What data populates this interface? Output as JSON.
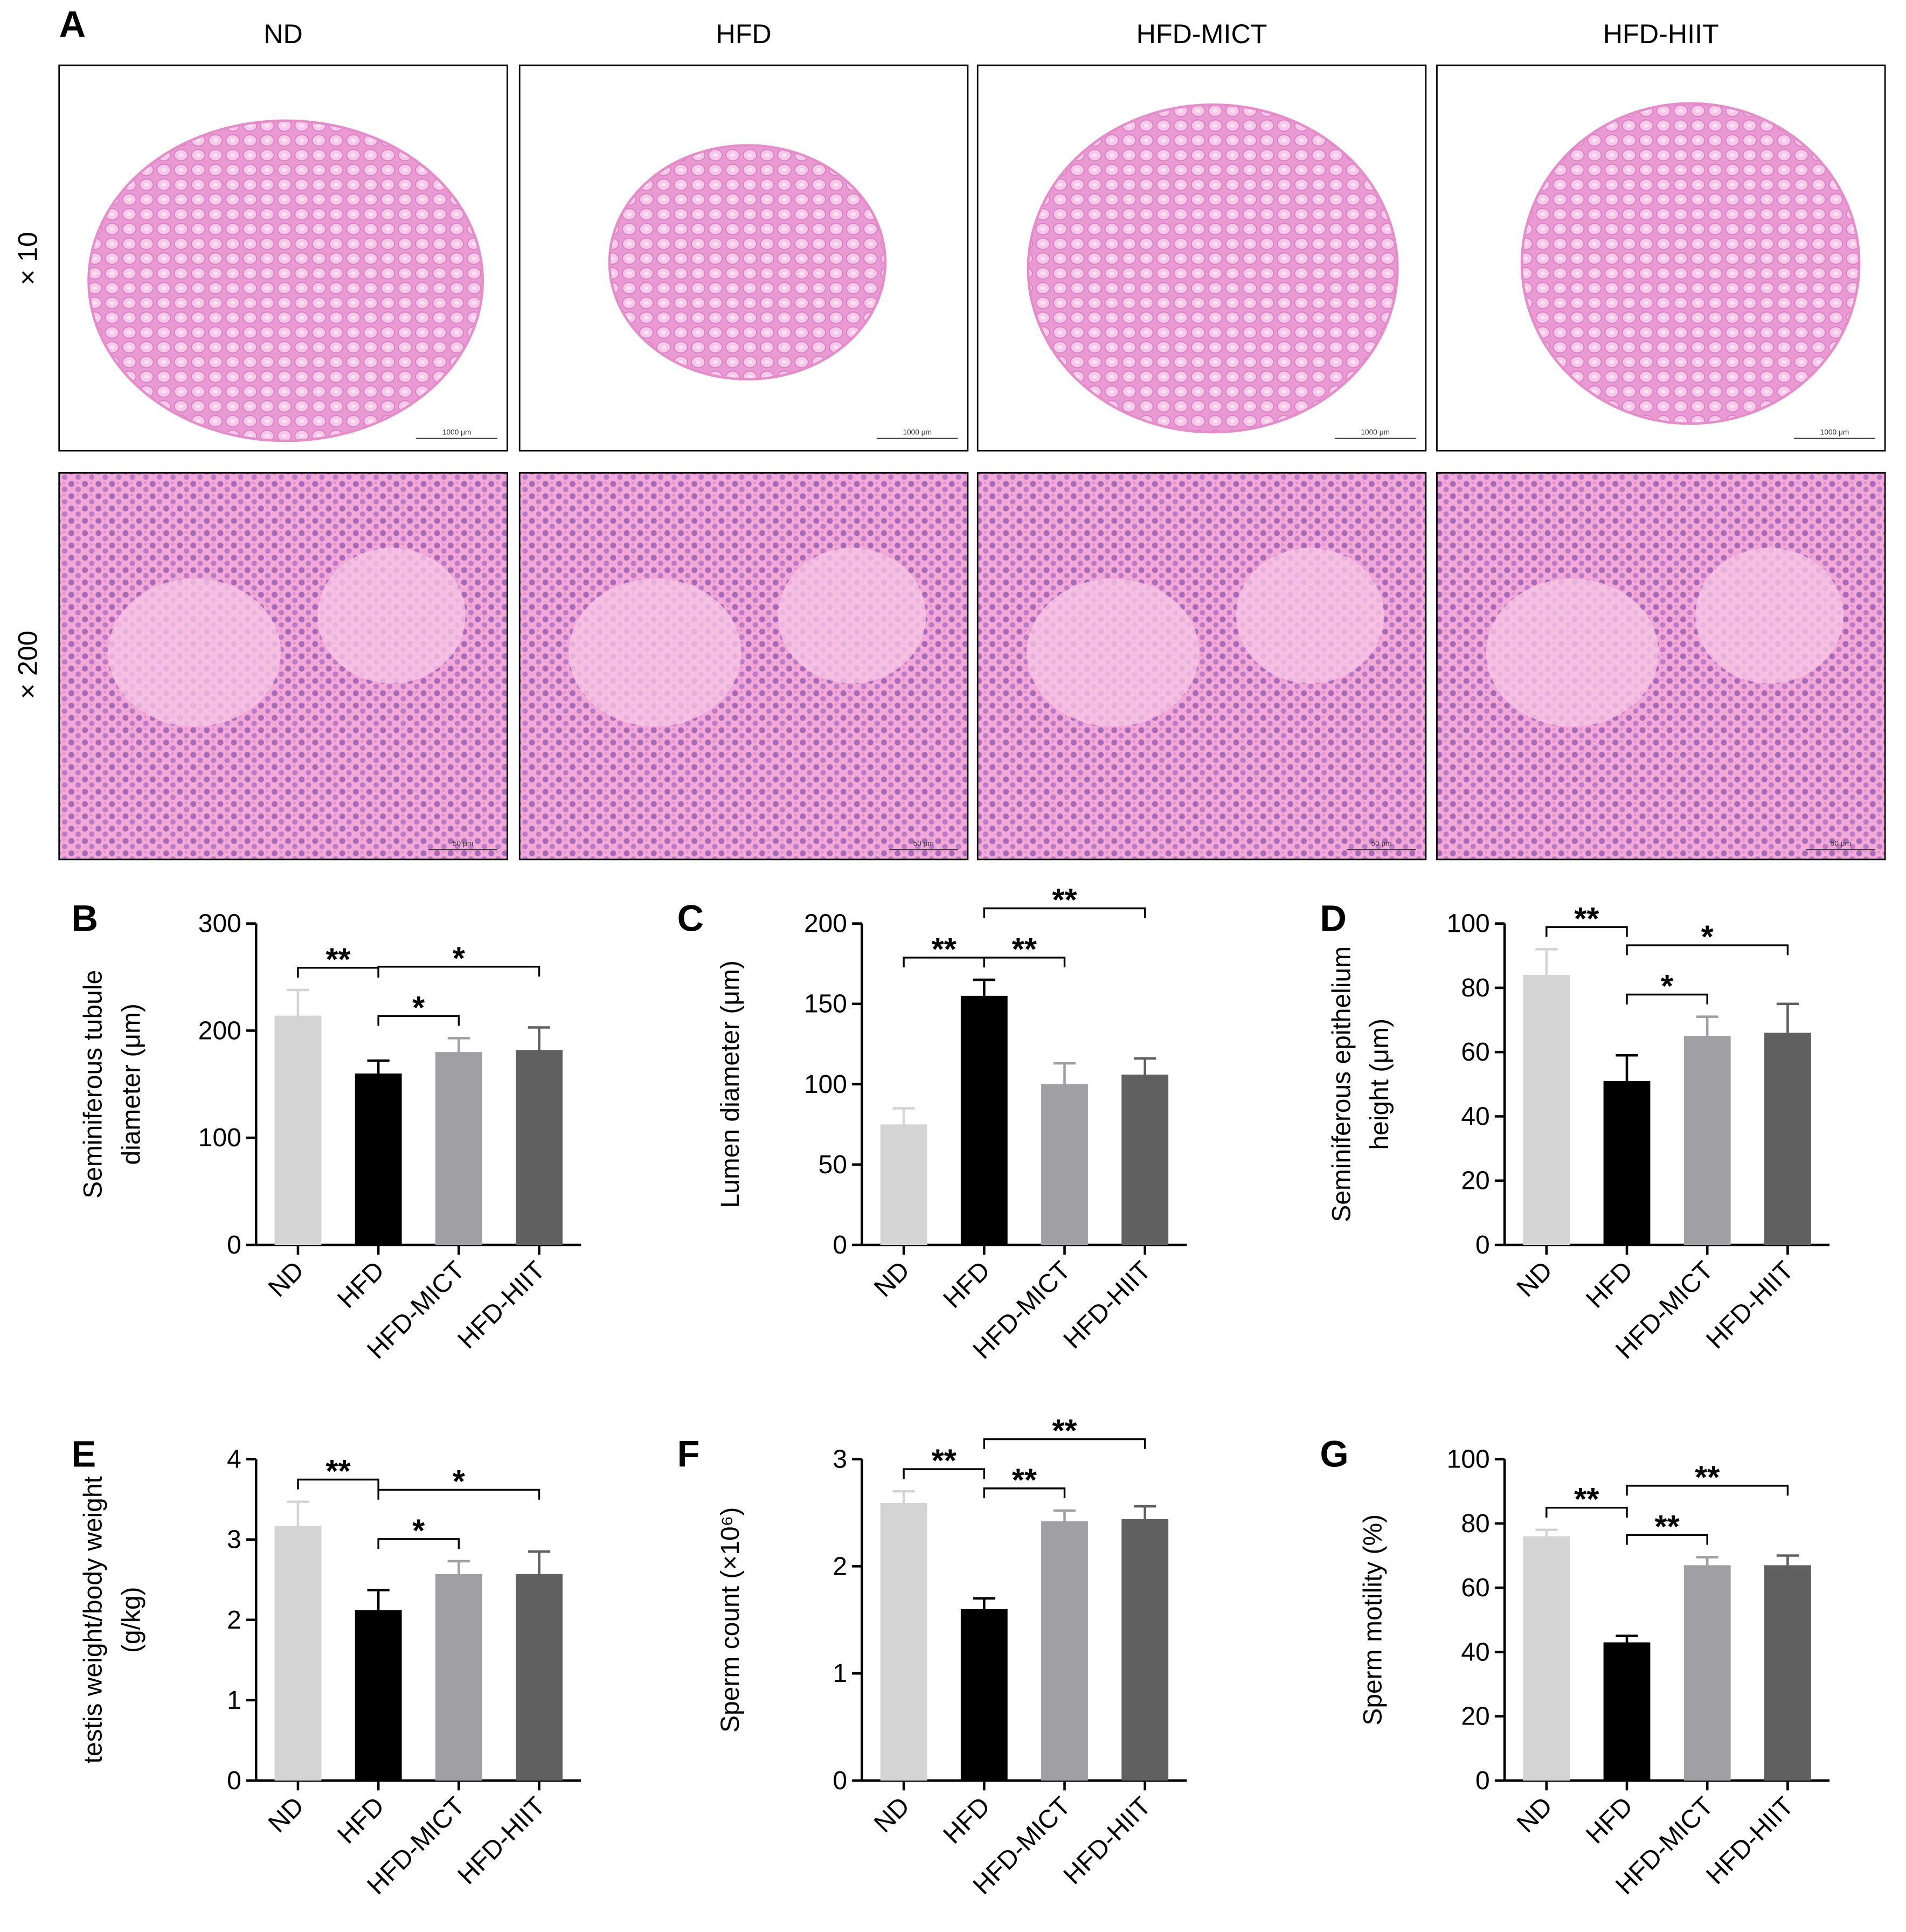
{
  "panel_a": {
    "label": "A",
    "columns": [
      "ND",
      "HFD",
      "HFD-MICT",
      "HFD-HIIT"
    ],
    "rows": [
      "× 10",
      "× 200"
    ],
    "scale_bars": [
      "1000 μm",
      "50 μm"
    ]
  },
  "chart_data": [
    {
      "type": "bar",
      "panel": "B",
      "ylabel": [
        "Seminiferous tubule",
        "diameter (μm)"
      ],
      "categories": [
        "ND",
        "HFD",
        "HFD-MICT",
        "HFD-HIIT"
      ],
      "values": [
        214,
        160,
        180,
        182
      ],
      "errors": [
        24,
        12,
        13,
        21
      ],
      "colors": [
        "#d4d4d4",
        "#000000",
        "#a0a0a4",
        "#606060"
      ],
      "ylim": [
        0,
        300
      ],
      "yticks": [
        0,
        100,
        200,
        300
      ],
      "comparisons": [
        {
          "groups": [
            0,
            1
          ],
          "label": "**"
        },
        {
          "groups": [
            1,
            2
          ],
          "label": "*"
        },
        {
          "groups": [
            1,
            3
          ],
          "label": "*"
        }
      ]
    },
    {
      "type": "bar",
      "panel": "C",
      "ylabel": [
        "Lumen diameter (μm)"
      ],
      "categories": [
        "ND",
        "HFD",
        "HFD-MICT",
        "HFD-HIIT"
      ],
      "values": [
        75,
        155,
        100,
        106
      ],
      "errors": [
        10,
        10,
        13,
        10
      ],
      "colors": [
        "#d4d4d4",
        "#000000",
        "#a0a0a4",
        "#606060"
      ],
      "ylim": [
        0,
        200
      ],
      "yticks": [
        0,
        50,
        100,
        150,
        200
      ],
      "comparisons": [
        {
          "groups": [
            0,
            1
          ],
          "label": "**"
        },
        {
          "groups": [
            1,
            2
          ],
          "label": "**"
        },
        {
          "groups": [
            1,
            3
          ],
          "label": "**"
        }
      ]
    },
    {
      "type": "bar",
      "panel": "D",
      "ylabel": [
        "Seminiferous epithelium",
        "height (μm)"
      ],
      "categories": [
        "ND",
        "HFD",
        "HFD-MICT",
        "HFD-HIIT"
      ],
      "values": [
        84,
        51,
        65,
        66
      ],
      "errors": [
        8,
        8,
        6,
        9
      ],
      "colors": [
        "#d4d4d4",
        "#000000",
        "#a0a0a4",
        "#606060"
      ],
      "ylim": [
        0,
        100
      ],
      "yticks": [
        0,
        20,
        40,
        60,
        80,
        100
      ],
      "comparisons": [
        {
          "groups": [
            0,
            1
          ],
          "label": "**"
        },
        {
          "groups": [
            1,
            2
          ],
          "label": "*"
        },
        {
          "groups": [
            1,
            3
          ],
          "label": "*"
        }
      ]
    },
    {
      "type": "bar",
      "panel": "E",
      "ylabel": [
        "testis weight/body weight",
        "(g/kg)"
      ],
      "categories": [
        "ND",
        "HFD",
        "HFD-MICT",
        "HFD-HIIT"
      ],
      "values": [
        3.17,
        2.12,
        2.57,
        2.57
      ],
      "errors": [
        0.3,
        0.25,
        0.16,
        0.28
      ],
      "colors": [
        "#d4d4d4",
        "#000000",
        "#a0a0a4",
        "#606060"
      ],
      "ylim": [
        0,
        4
      ],
      "yticks": [
        0,
        1,
        2,
        3,
        4
      ],
      "comparisons": [
        {
          "groups": [
            0,
            1
          ],
          "label": "**"
        },
        {
          "groups": [
            1,
            2
          ],
          "label": "*"
        },
        {
          "groups": [
            1,
            3
          ],
          "label": "*"
        }
      ]
    },
    {
      "type": "bar",
      "panel": "F",
      "ylabel": [
        "Sperm count (×10⁶)"
      ],
      "categories": [
        "ND",
        "HFD",
        "HFD-MICT",
        "HFD-HIIT"
      ],
      "values": [
        2.59,
        1.6,
        2.42,
        2.44
      ],
      "errors": [
        0.11,
        0.1,
        0.1,
        0.12
      ],
      "colors": [
        "#d4d4d4",
        "#000000",
        "#a0a0a4",
        "#606060"
      ],
      "ylim": [
        0,
        3
      ],
      "yticks": [
        0,
        1,
        2,
        3
      ],
      "comparisons": [
        {
          "groups": [
            0,
            1
          ],
          "label": "**"
        },
        {
          "groups": [
            1,
            2
          ],
          "label": "**"
        },
        {
          "groups": [
            1,
            3
          ],
          "label": "**"
        }
      ]
    },
    {
      "type": "bar",
      "panel": "G",
      "ylabel": [
        "Sperm motility (%)"
      ],
      "categories": [
        "ND",
        "HFD",
        "HFD-MICT",
        "HFD-HIIT"
      ],
      "values": [
        76,
        43,
        67,
        67
      ],
      "errors": [
        2,
        2,
        2.5,
        3
      ],
      "colors": [
        "#d4d4d4",
        "#000000",
        "#a0a0a4",
        "#606060"
      ],
      "ylim": [
        0,
        100
      ],
      "yticks": [
        0,
        20,
        40,
        60,
        80,
        100
      ],
      "comparisons": [
        {
          "groups": [
            0,
            1
          ],
          "label": "**"
        },
        {
          "groups": [
            1,
            2
          ],
          "label": "**"
        },
        {
          "groups": [
            1,
            3
          ],
          "label": "**"
        }
      ]
    }
  ]
}
